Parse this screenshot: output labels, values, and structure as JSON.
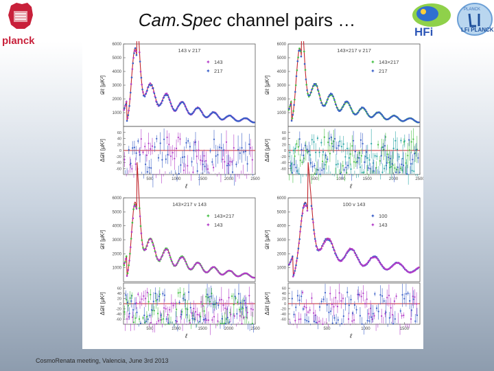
{
  "slide": {
    "title_italic": "Cam.Spec",
    "title_rest": " channel pairs …",
    "footer": "CosmoRenata meeting, Valencia, June 3rd 2013",
    "logos": {
      "left": "planck",
      "right_1": "HFi",
      "right_2": "LFi PLANCK",
      "right_2_top": "PLANCK"
    }
  },
  "colors": {
    "theory_line": "#c0242b",
    "magenta": "#b23bc8",
    "blue": "#3a5fc8",
    "green": "#44c044",
    "teal": "#2aa6a6",
    "planck_red": "#c8203a"
  },
  "chart_data": [
    {
      "type": "scatter",
      "title": "143 v 217",
      "ylabel": "𝒟ℓ [μK²]",
      "res_ylabel": "Δ𝒟ℓ [μK²]",
      "xlabel": "ℓ",
      "xlim": [
        0,
        2500
      ],
      "ylim": [
        0,
        6000
      ],
      "res_ylim": [
        -80,
        80
      ],
      "x_ticks": [
        500,
        1000,
        1500,
        2000,
        2500
      ],
      "y_ticks": [
        1000,
        2000,
        3000,
        4000,
        5000,
        6000
      ],
      "res_ticks": [
        -60,
        -40,
        -20,
        0,
        20,
        40,
        60
      ],
      "legend": [
        {
          "label": "143",
          "color": "#b23bc8"
        },
        {
          "label": "217",
          "color": "#3a5fc8"
        }
      ],
      "res_colors": [
        "#b23bc8",
        "#3a5fc8"
      ]
    },
    {
      "type": "scatter",
      "title": "143×217 v 217",
      "ylabel": "𝒟ℓ [μK²]",
      "res_ylabel": "Δ𝒟ℓ [μK²]",
      "xlabel": "ℓ",
      "xlim": [
        0,
        2500
      ],
      "ylim": [
        0,
        6000
      ],
      "res_ylim": [
        -80,
        80
      ],
      "x_ticks": [
        500,
        1000,
        1500,
        2000,
        2500
      ],
      "y_ticks": [
        1000,
        2000,
        3000,
        4000,
        5000,
        6000
      ],
      "res_ticks": [
        -60,
        -40,
        -20,
        0,
        20,
        40,
        60
      ],
      "legend": [
        {
          "label": "143×217",
          "color": "#44c044"
        },
        {
          "label": "217",
          "color": "#3a5fc8"
        }
      ],
      "res_colors": [
        "#44c044",
        "#2aa6a6",
        "#3a5fc8"
      ]
    },
    {
      "type": "scatter",
      "title": "143×217 v 143",
      "ylabel": "𝒟ℓ [μK²]",
      "res_ylabel": "Δ𝒟ℓ [μK²]",
      "xlabel": "ℓ",
      "xlim": [
        0,
        2500
      ],
      "ylim": [
        0,
        6000
      ],
      "res_ylim": [
        -80,
        80
      ],
      "x_ticks": [
        500,
        1000,
        1500,
        2000,
        2500
      ],
      "y_ticks": [
        1000,
        2000,
        3000,
        4000,
        5000,
        6000
      ],
      "res_ticks": [
        -60,
        -40,
        -20,
        0,
        20,
        40,
        60
      ],
      "legend": [
        {
          "label": "143×217",
          "color": "#44c044"
        },
        {
          "label": "143",
          "color": "#b23bc8"
        }
      ],
      "res_colors": [
        "#44c044",
        "#b23bc8",
        "#3a5fc8"
      ]
    },
    {
      "type": "scatter",
      "title": "100 v 143",
      "ylabel": "𝒟ℓ [μK²]",
      "res_ylabel": "Δ𝒟ℓ [μK²]",
      "xlabel": "ℓ",
      "xlim": [
        0,
        1700
      ],
      "ylim": [
        0,
        6000
      ],
      "res_ylim": [
        -80,
        80
      ],
      "x_ticks": [
        500,
        1000,
        1500
      ],
      "y_ticks": [
        1000,
        2000,
        3000,
        4000,
        5000,
        6000
      ],
      "res_ticks": [
        -60,
        -40,
        -20,
        0,
        20,
        40,
        60
      ],
      "legend": [
        {
          "label": "100",
          "color": "#3a5fc8"
        },
        {
          "label": "143",
          "color": "#b23bc8"
        }
      ],
      "res_colors": [
        "#b23bc8",
        "#3a5fc8"
      ]
    }
  ]
}
